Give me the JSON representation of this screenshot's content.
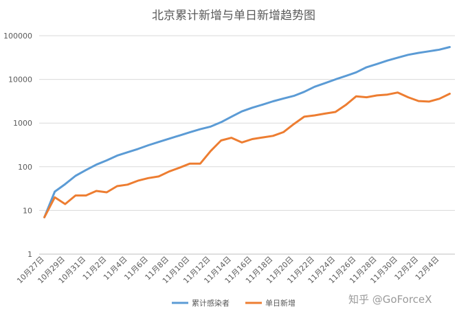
{
  "chart_data": {
    "type": "line",
    "title": "北京累计新增与单日新增趋势图",
    "xlabel": "",
    "ylabel": "",
    "yscale": "log",
    "ylim": [
      1,
      100000
    ],
    "y_ticks": [
      "1",
      "10",
      "100",
      "1000",
      "10000",
      "100000"
    ],
    "grid": true,
    "legend_position": "bottom",
    "x": [
      "10月27日",
      "10月28日",
      "10月29日",
      "10月30日",
      "10月31日",
      "11月1日",
      "11月2日",
      "11月3日",
      "11月4日",
      "11月5日",
      "11月6日",
      "11月7日",
      "11月8日",
      "11月9日",
      "11月10日",
      "11月11日",
      "11月12日",
      "11月13日",
      "11月14日",
      "11月15日",
      "11月16日",
      "11月17日",
      "11月18日",
      "11月19日",
      "11月20日",
      "11月21日",
      "11月22日",
      "11月23日",
      "11月24日",
      "11月25日",
      "11月26日",
      "11月27日",
      "11月28日",
      "11月29日",
      "11月30日",
      "12月1日",
      "12月2日",
      "12月3日",
      "12月4日",
      "12月5日"
    ],
    "x_tick_labels": [
      "10月27日",
      "10月29日",
      "10月31日",
      "11月2日",
      "11月4日",
      "11月6日",
      "11月8日",
      "11月10日",
      "11月12日",
      "11月14日",
      "11月16日",
      "11月18日",
      "11月20日",
      "11月22日",
      "11月24日",
      "11月26日",
      "11月28日",
      "11月30日",
      "12月2日",
      "12月4日"
    ],
    "series": [
      {
        "name": "累计感染者",
        "color": "#5b9bd5",
        "values": [
          7,
          27,
          40,
          62,
          84,
          112,
          140,
          180,
          215,
          255,
          310,
          370,
          440,
          520,
          615,
          725,
          830,
          1050,
          1400,
          1850,
          2250,
          2650,
          3150,
          3650,
          4200,
          5200,
          6800,
          8200,
          10000,
          12000,
          14500,
          19000,
          22500,
          27000,
          31500,
          36500,
          40500,
          44000,
          48000,
          55000
        ]
      },
      {
        "name": "单日新增",
        "color": "#ed7d31",
        "values": [
          7,
          20,
          14,
          22,
          22,
          28,
          26,
          36,
          39,
          48,
          55,
          60,
          78,
          95,
          118,
          118,
          230,
          400,
          460,
          360,
          430,
          470,
          510,
          620,
          950,
          1400,
          1500,
          1650,
          1800,
          2600,
          4100,
          3900,
          4300,
          4500,
          5000,
          3900,
          3200,
          3100,
          3600,
          4700
        ]
      }
    ]
  },
  "watermark": "知乎 @GoForceX"
}
